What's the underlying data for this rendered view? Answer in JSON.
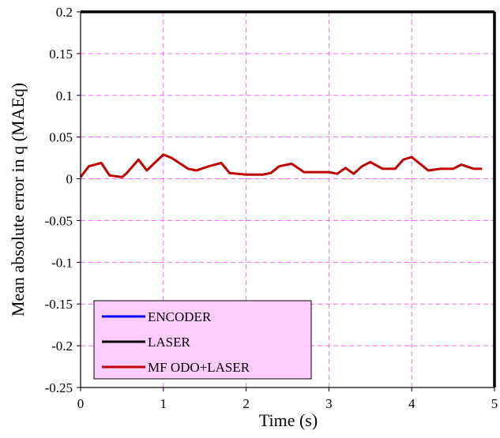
{
  "chart_data": {
    "type": "line",
    "title": "",
    "xlabel": "Time (s)",
    "ylabel": "Mean absolute error in q (MAEq)",
    "xlim": [
      0,
      5
    ],
    "ylim": [
      -0.25,
      0.2
    ],
    "xticks": [
      0,
      1,
      2,
      3,
      4,
      5
    ],
    "xtick_labels": [
      "0",
      "1",
      "2",
      "3",
      "4",
      "5"
    ],
    "yticks": [
      0.2,
      0.15,
      0.1,
      0.05,
      0,
      -0.05,
      -0.1,
      -0.15,
      -0.2,
      -0.25
    ],
    "ytick_labels": [
      "0.2",
      "0.15",
      "0.1",
      "0.05",
      "0",
      "-0.05",
      "-0.1",
      "-0.15",
      "-0.2",
      "-0.25"
    ],
    "grid": true,
    "legend_position": "bottom-left",
    "series": [
      {
        "name": "ENCODER",
        "color": "#0000ff",
        "x": [],
        "y": []
      },
      {
        "name": "LASER",
        "color": "#000000",
        "x": [],
        "y": []
      },
      {
        "name": "MF ODO+LASER",
        "color": "#c00000",
        "x": [
          0,
          0.1,
          0.25,
          0.35,
          0.5,
          0.55,
          0.7,
          0.8,
          1.0,
          1.1,
          1.3,
          1.4,
          1.55,
          1.7,
          1.8,
          2.0,
          2.1,
          2.2,
          2.3,
          2.4,
          2.55,
          2.7,
          2.8,
          3.0,
          3.1,
          3.2,
          3.3,
          3.4,
          3.5,
          3.65,
          3.8,
          3.9,
          4.0,
          4.1,
          4.2,
          4.35,
          4.5,
          4.6,
          4.75,
          4.85
        ],
        "y": [
          0.002,
          0.015,
          0.019,
          0.004,
          0.002,
          0.006,
          0.023,
          0.01,
          0.029,
          0.025,
          0.012,
          0.01,
          0.015,
          0.019,
          0.007,
          0.005,
          0.005,
          0.005,
          0.007,
          0.015,
          0.018,
          0.008,
          0.008,
          0.008,
          0.006,
          0.013,
          0.006,
          0.015,
          0.02,
          0.012,
          0.012,
          0.023,
          0.026,
          0.018,
          0.01,
          0.012,
          0.012,
          0.017,
          0.012,
          0.012
        ]
      }
    ]
  }
}
